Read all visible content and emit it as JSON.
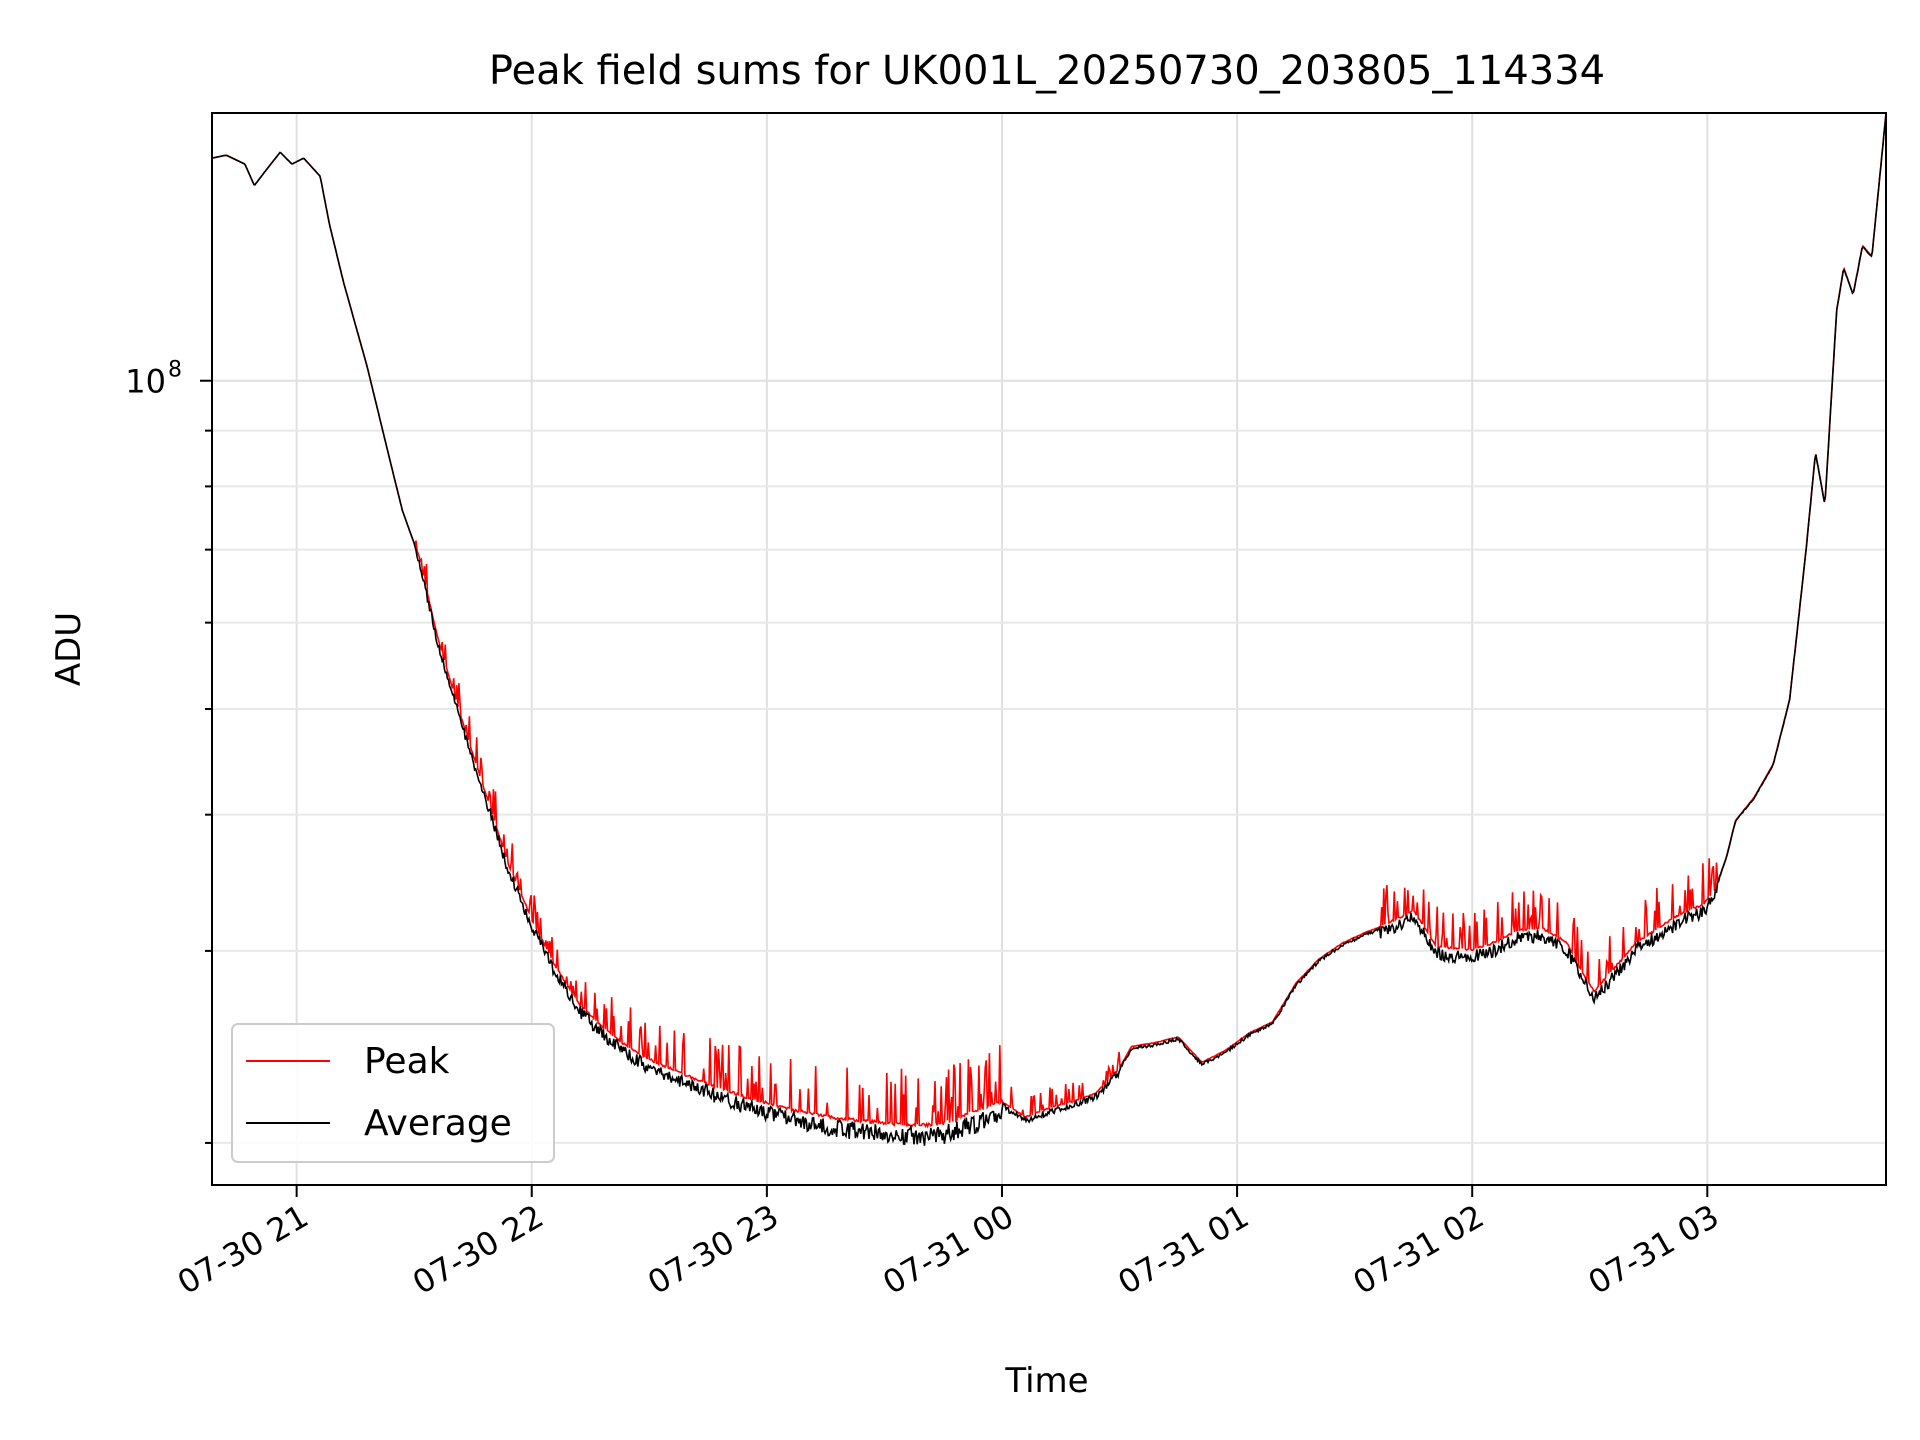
{
  "chart_data": {
    "type": "line",
    "title": "Peak field sums for UK001L_20250730_203805_114334",
    "xlabel": "Time",
    "ylabel": "ADU",
    "y_scale": "log",
    "grid": true,
    "legend_position": "lower-left",
    "x_range_hours": [
      20.64,
      27.76
    ],
    "y_range": [
      18300000,
      176000000
    ],
    "x_ticks": [
      {
        "label": "07-30 21",
        "hour": 21
      },
      {
        "label": "07-30 22",
        "hour": 22
      },
      {
        "label": "07-30 23",
        "hour": 23
      },
      {
        "label": "07-31 00",
        "hour": 24
      },
      {
        "label": "07-31 01",
        "hour": 25
      },
      {
        "label": "07-31 02",
        "hour": 26
      },
      {
        "label": "07-31 03",
        "hour": 27
      }
    ],
    "y_ticks": [
      {
        "base": "10",
        "exp": "8",
        "value": 100000000
      }
    ],
    "series": [
      {
        "name": "Peak",
        "color": "#ff0000"
      },
      {
        "name": "Average",
        "color": "#000000"
      }
    ],
    "average_curve": [
      [
        20.64,
        160000000
      ],
      [
        20.7,
        161000000
      ],
      [
        20.78,
        158000000
      ],
      [
        20.82,
        151000000
      ],
      [
        20.87,
        156000000
      ],
      [
        20.93,
        162000000
      ],
      [
        20.98,
        158000000
      ],
      [
        21.03,
        160000000
      ],
      [
        21.1,
        154000000
      ],
      [
        21.14,
        139000000
      ],
      [
        21.2,
        123000000
      ],
      [
        21.3,
        103000000
      ],
      [
        21.4,
        84000000
      ],
      [
        21.45,
        76000000
      ],
      [
        21.52,
        69000000
      ],
      [
        21.6,
        58000000
      ],
      [
        21.7,
        49000000
      ],
      [
        21.8,
        42000000
      ],
      [
        21.9,
        36000000
      ],
      [
        22.0,
        32000000
      ],
      [
        22.1,
        29000000
      ],
      [
        22.2,
        26800000
      ],
      [
        22.3,
        25500000
      ],
      [
        22.4,
        24500000
      ],
      [
        22.5,
        23800000
      ],
      [
        22.6,
        23300000
      ],
      [
        22.7,
        22800000
      ],
      [
        22.8,
        22400000
      ],
      [
        22.9,
        22000000
      ],
      [
        23.0,
        21700000
      ],
      [
        23.1,
        21400000
      ],
      [
        23.2,
        21200000
      ],
      [
        23.3,
        21000000
      ],
      [
        23.4,
        20900000
      ],
      [
        23.5,
        20800000
      ],
      [
        23.6,
        20700000
      ],
      [
        23.7,
        20700000
      ],
      [
        23.8,
        20900000
      ],
      [
        23.9,
        21400000
      ],
      [
        24.0,
        21800000
      ],
      [
        24.1,
        21100000
      ],
      [
        24.2,
        21500000
      ],
      [
        24.3,
        21800000
      ],
      [
        24.4,
        22200000
      ],
      [
        24.5,
        23400000
      ],
      [
        24.55,
        24500000
      ],
      [
        24.65,
        24700000
      ],
      [
        24.75,
        25000000
      ],
      [
        24.85,
        23700000
      ],
      [
        24.95,
        24300000
      ],
      [
        25.05,
        25200000
      ],
      [
        25.15,
        25800000
      ],
      [
        25.25,
        28000000
      ],
      [
        25.35,
        29500000
      ],
      [
        25.45,
        30500000
      ],
      [
        25.55,
        31200000
      ],
      [
        25.65,
        31800000
      ],
      [
        25.75,
        32600000
      ],
      [
        25.8,
        31400000
      ],
      [
        25.85,
        30200000
      ],
      [
        26.0,
        30000000
      ],
      [
        26.1,
        30500000
      ],
      [
        26.2,
        31300000
      ],
      [
        26.3,
        31400000
      ],
      [
        26.4,
        30500000
      ],
      [
        26.48,
        28300000
      ],
      [
        26.52,
        27500000
      ],
      [
        26.6,
        28800000
      ],
      [
        26.7,
        30500000
      ],
      [
        26.8,
        31500000
      ],
      [
        26.9,
        32500000
      ],
      [
        26.98,
        33000000
      ],
      [
        27.03,
        34000000
      ],
      [
        27.08,
        36500000
      ],
      [
        27.12,
        39500000
      ],
      [
        27.2,
        41500000
      ],
      [
        27.28,
        44500000
      ],
      [
        27.35,
        51000000
      ],
      [
        27.42,
        70000000
      ],
      [
        27.46,
        86000000
      ],
      [
        27.5,
        77000000
      ],
      [
        27.55,
        116000000
      ],
      [
        27.58,
        127000000
      ],
      [
        27.62,
        120000000
      ],
      [
        27.66,
        133000000
      ],
      [
        27.7,
        130000000
      ],
      [
        27.76,
        176000000
      ]
    ]
  }
}
